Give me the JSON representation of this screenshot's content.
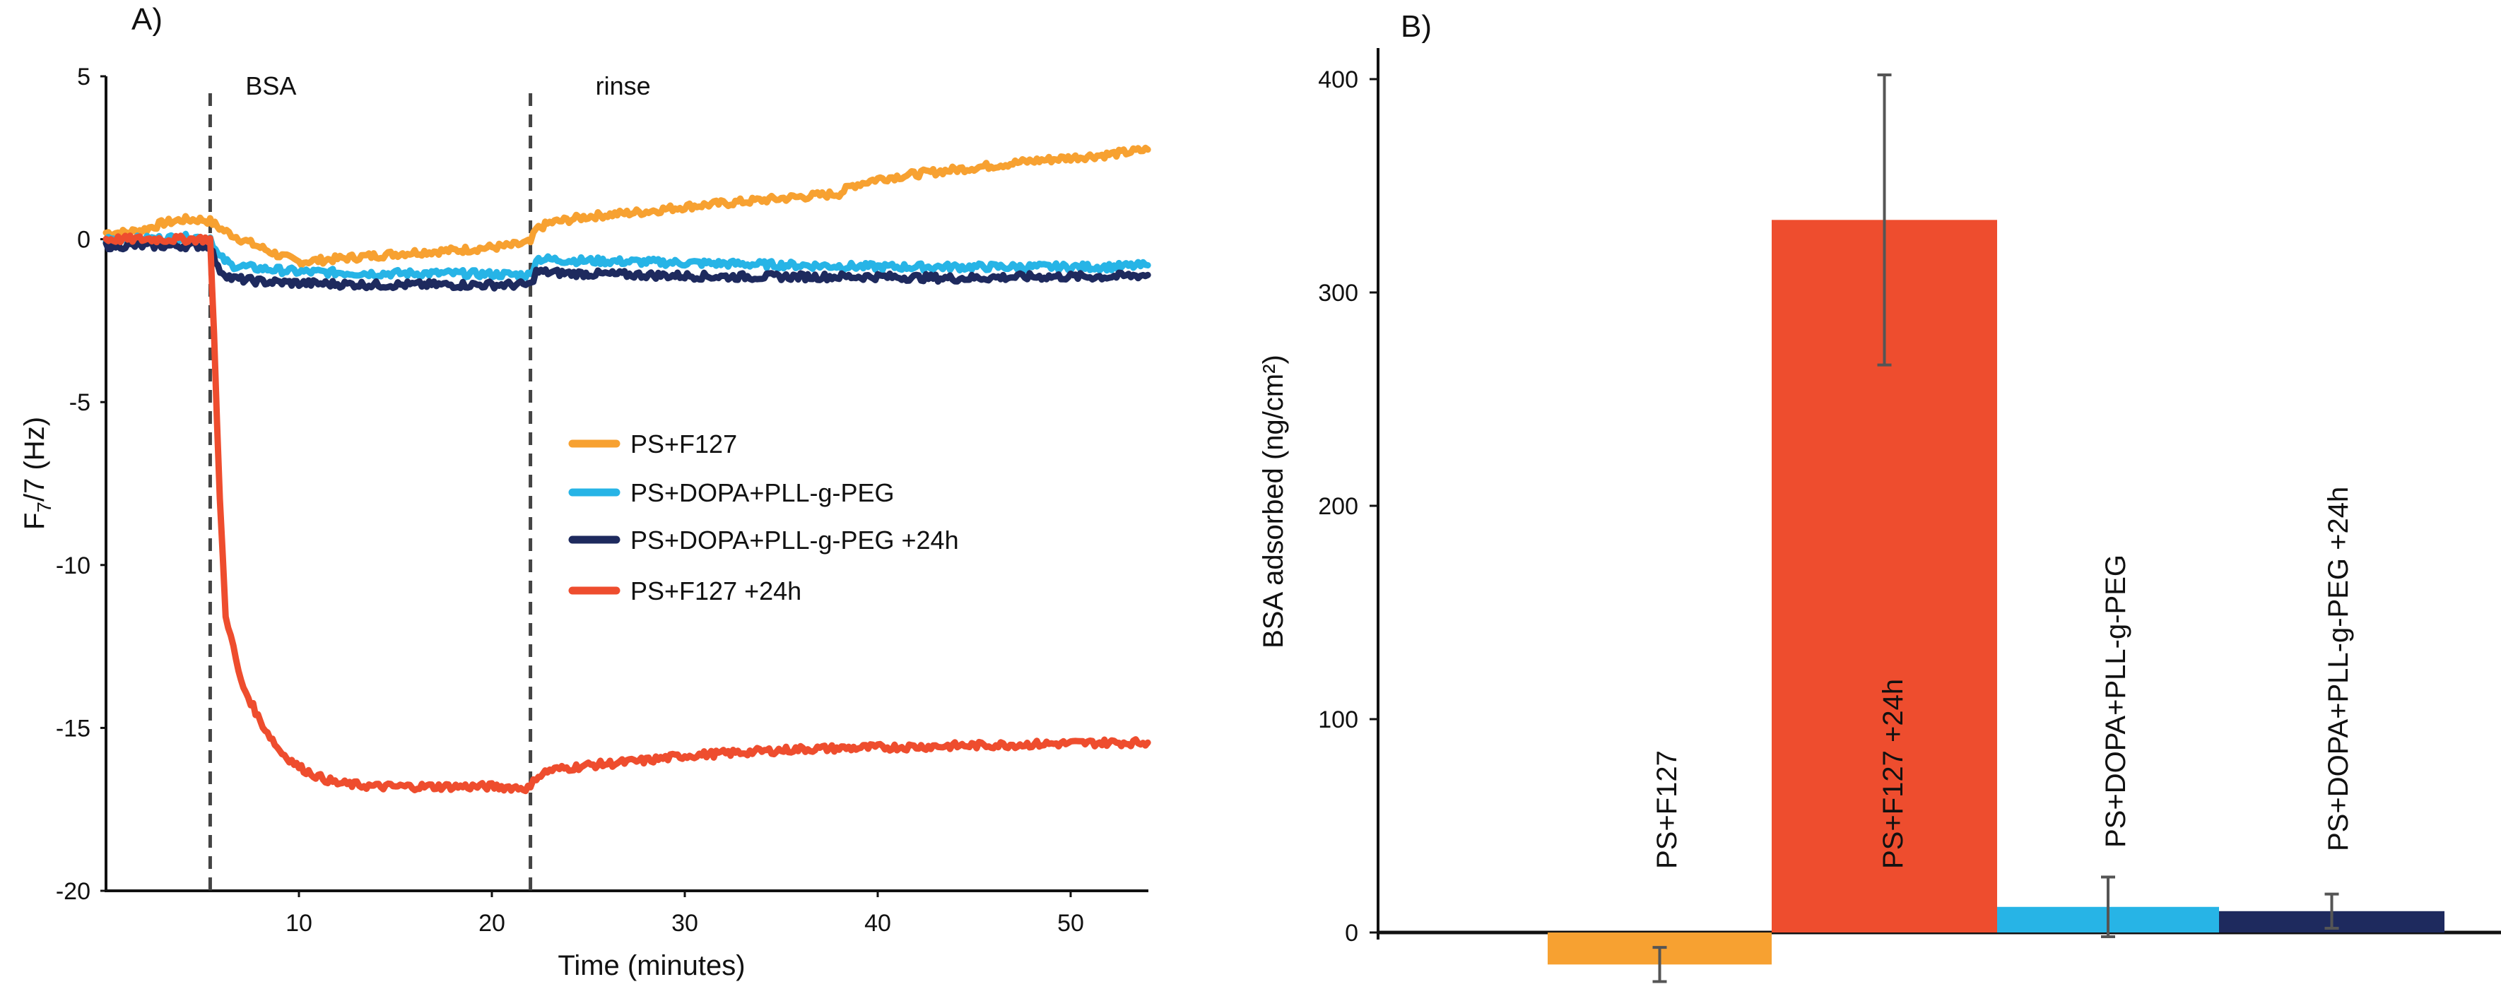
{
  "chart_data": [
    {
      "panel_label": "A)",
      "type": "line",
      "xlabel": "Time (minutes)",
      "ylabel": "F₇/7 (Hz)",
      "ylabel_parts": [
        "F",
        "7",
        "/7 (Hz)"
      ],
      "xlim": [
        0,
        54
      ],
      "ylim": [
        -20,
        5
      ],
      "xticks": [
        "10",
        "20",
        "30",
        "40",
        "50"
      ],
      "xtick_values": [
        10,
        20,
        30,
        40,
        50
      ],
      "yticks": [
        "5",
        "0",
        "-5",
        "-10",
        "-15",
        "-20"
      ],
      "ytick_values": [
        5,
        0,
        -5,
        -10,
        -15,
        -20
      ],
      "annotations": [
        {
          "text": "BSA",
          "x": 5.4
        },
        {
          "text": "rinse",
          "x": 22
        }
      ],
      "legend": [
        "PS+F127",
        "PS+DOPA+PLL-g-PEG",
        "PS+DOPA+PLL-g-PEG +24h",
        "PS+F127 +24h"
      ],
      "series": [
        {
          "name": "PS+F127",
          "color": "#F7A131",
          "x": [
            0,
            1,
            2,
            3,
            4,
            5,
            5.4,
            6,
            7,
            8,
            9,
            10,
            12,
            14,
            16,
            18,
            20,
            21,
            22,
            22.3,
            23,
            25,
            28,
            30,
            33,
            36,
            38,
            38.7,
            40,
            42,
            45,
            48,
            50,
            52,
            54
          ],
          "y": [
            0.2,
            0.2,
            0.3,
            0.5,
            0.6,
            0.6,
            0.55,
            0.3,
            0.0,
            -0.25,
            -0.5,
            -0.7,
            -0.6,
            -0.5,
            -0.4,
            -0.35,
            -0.25,
            -0.2,
            -0.1,
            0.3,
            0.5,
            0.7,
            0.85,
            1.0,
            1.15,
            1.3,
            1.4,
            1.65,
            1.85,
            2.0,
            2.2,
            2.4,
            2.5,
            2.6,
            2.75
          ]
        },
        {
          "name": "PS+DOPA+PLL-g-PEG",
          "color": "#27B4E6",
          "x": [
            0,
            2,
            4,
            5.4,
            5.8,
            6.5,
            8,
            10,
            14,
            18,
            22,
            22.3,
            24,
            28,
            32,
            36,
            40,
            44,
            48,
            52,
            54
          ],
          "y": [
            0.0,
            0.0,
            0.05,
            0.05,
            -0.5,
            -0.8,
            -0.9,
            -1.0,
            -1.05,
            -1.05,
            -1.1,
            -0.6,
            -0.65,
            -0.7,
            -0.75,
            -0.8,
            -0.85,
            -0.85,
            -0.85,
            -0.85,
            -0.8
          ]
        },
        {
          "name": "PS+DOPA+PLL-g-PEG +24h",
          "color": "#1E2A5E",
          "x": [
            0,
            2,
            4,
            5.4,
            5.8,
            6.5,
            8,
            10,
            14,
            18,
            22,
            22.3,
            24,
            28,
            32,
            36,
            40,
            44,
            48,
            52,
            54
          ],
          "y": [
            -0.2,
            -0.2,
            -0.2,
            -0.2,
            -0.9,
            -1.2,
            -1.3,
            -1.35,
            -1.4,
            -1.4,
            -1.4,
            -1.0,
            -1.05,
            -1.1,
            -1.15,
            -1.15,
            -1.15,
            -1.2,
            -1.15,
            -1.15,
            -1.1
          ]
        },
        {
          "name": "PS+F127 +24h",
          "color": "#EE4D2E",
          "x": [
            0,
            2,
            4,
            5.4,
            5.6,
            5.9,
            6.2,
            7,
            8,
            9,
            10,
            11,
            12,
            14,
            16,
            18,
            20,
            22,
            22.3,
            23,
            25,
            28,
            30,
            33,
            36,
            40,
            44,
            48,
            52,
            54
          ],
          "y": [
            0,
            0,
            0,
            0,
            -3,
            -8,
            -11.5,
            -13.6,
            -14.8,
            -15.7,
            -16.2,
            -16.5,
            -16.7,
            -16.8,
            -16.8,
            -16.8,
            -16.8,
            -16.85,
            -16.5,
            -16.3,
            -16.15,
            -16.0,
            -15.85,
            -15.75,
            -15.65,
            -15.6,
            -15.55,
            -15.5,
            -15.45,
            -15.45
          ]
        }
      ]
    },
    {
      "panel_label": "B)",
      "type": "bar",
      "ylabel": "BSA adsorbed (ng/cm²)",
      "ylim": [
        -20,
        400
      ],
      "yticks": [
        "400",
        "300",
        "200",
        "100",
        "0"
      ],
      "ytick_values": [
        400,
        300,
        200,
        100,
        0
      ],
      "categories": [
        "PS+F127",
        "PS+F127 +24h",
        "PS+DOPA+PLL-g-PEG",
        "PS+DOPA+PLL-g-PEG +24h"
      ],
      "values": [
        -15,
        334,
        12,
        10
      ],
      "errors": [
        8,
        68,
        14,
        8
      ],
      "colors": [
        "#F7A131",
        "#EE4D2E",
        "#27B4E6",
        "#1E2A5E"
      ]
    }
  ]
}
